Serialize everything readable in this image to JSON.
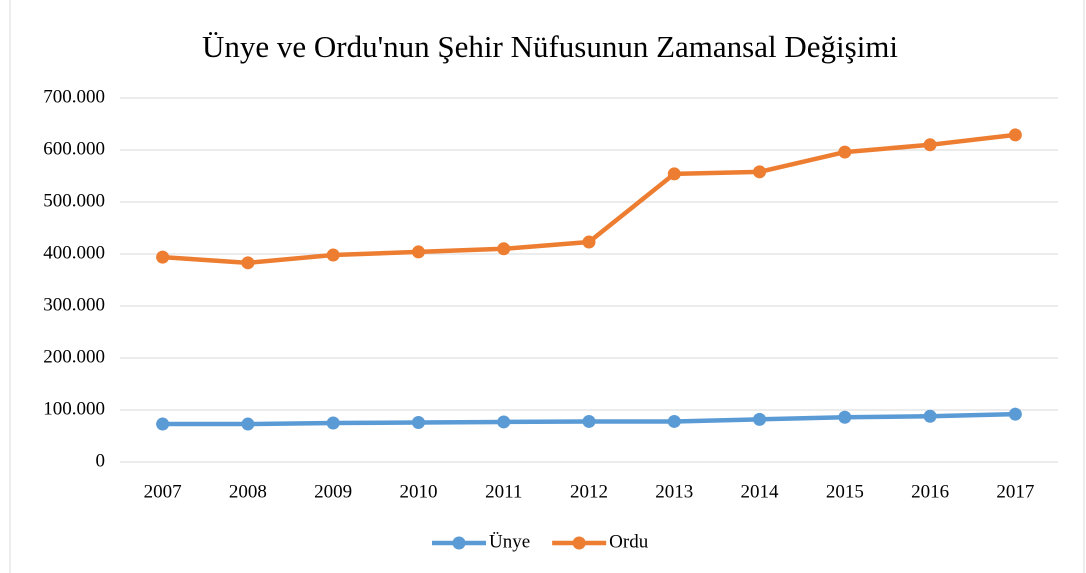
{
  "chart_data": {
    "type": "line",
    "title": "Ünye ve Ordu'nun Şehir Nüfusunun Zamansal Değişimi",
    "categories": [
      "2007",
      "2008",
      "2009",
      "2010",
      "2011",
      "2012",
      "2013",
      "2014",
      "2015",
      "2016",
      "2017"
    ],
    "series": [
      {
        "name": "Ünye",
        "color": "#5b9bd5",
        "values": [
          73000,
          73000,
          75000,
          76000,
          77000,
          78000,
          78000,
          82000,
          86000,
          88000,
          92000
        ]
      },
      {
        "name": "Ordu",
        "color": "#ed7d31",
        "values": [
          394000,
          383000,
          398000,
          404000,
          410000,
          423000,
          554000,
          558000,
          596000,
          610000,
          629000
        ]
      }
    ],
    "ylim": [
      0,
      700000
    ],
    "yticks": [
      0,
      {
        "value": 100000,
        "label": "100.000"
      },
      {
        "value": 200000,
        "label": "200.000"
      },
      {
        "value": 300000,
        "label": "300.000"
      },
      {
        "value": 400000,
        "label": "400.000"
      },
      {
        "value": 500000,
        "label": "500.000"
      },
      {
        "value": 600000,
        "label": "600.000"
      },
      {
        "value": 700000,
        "label": "700.000"
      }
    ],
    "grid": true,
    "legend": "bottom"
  }
}
